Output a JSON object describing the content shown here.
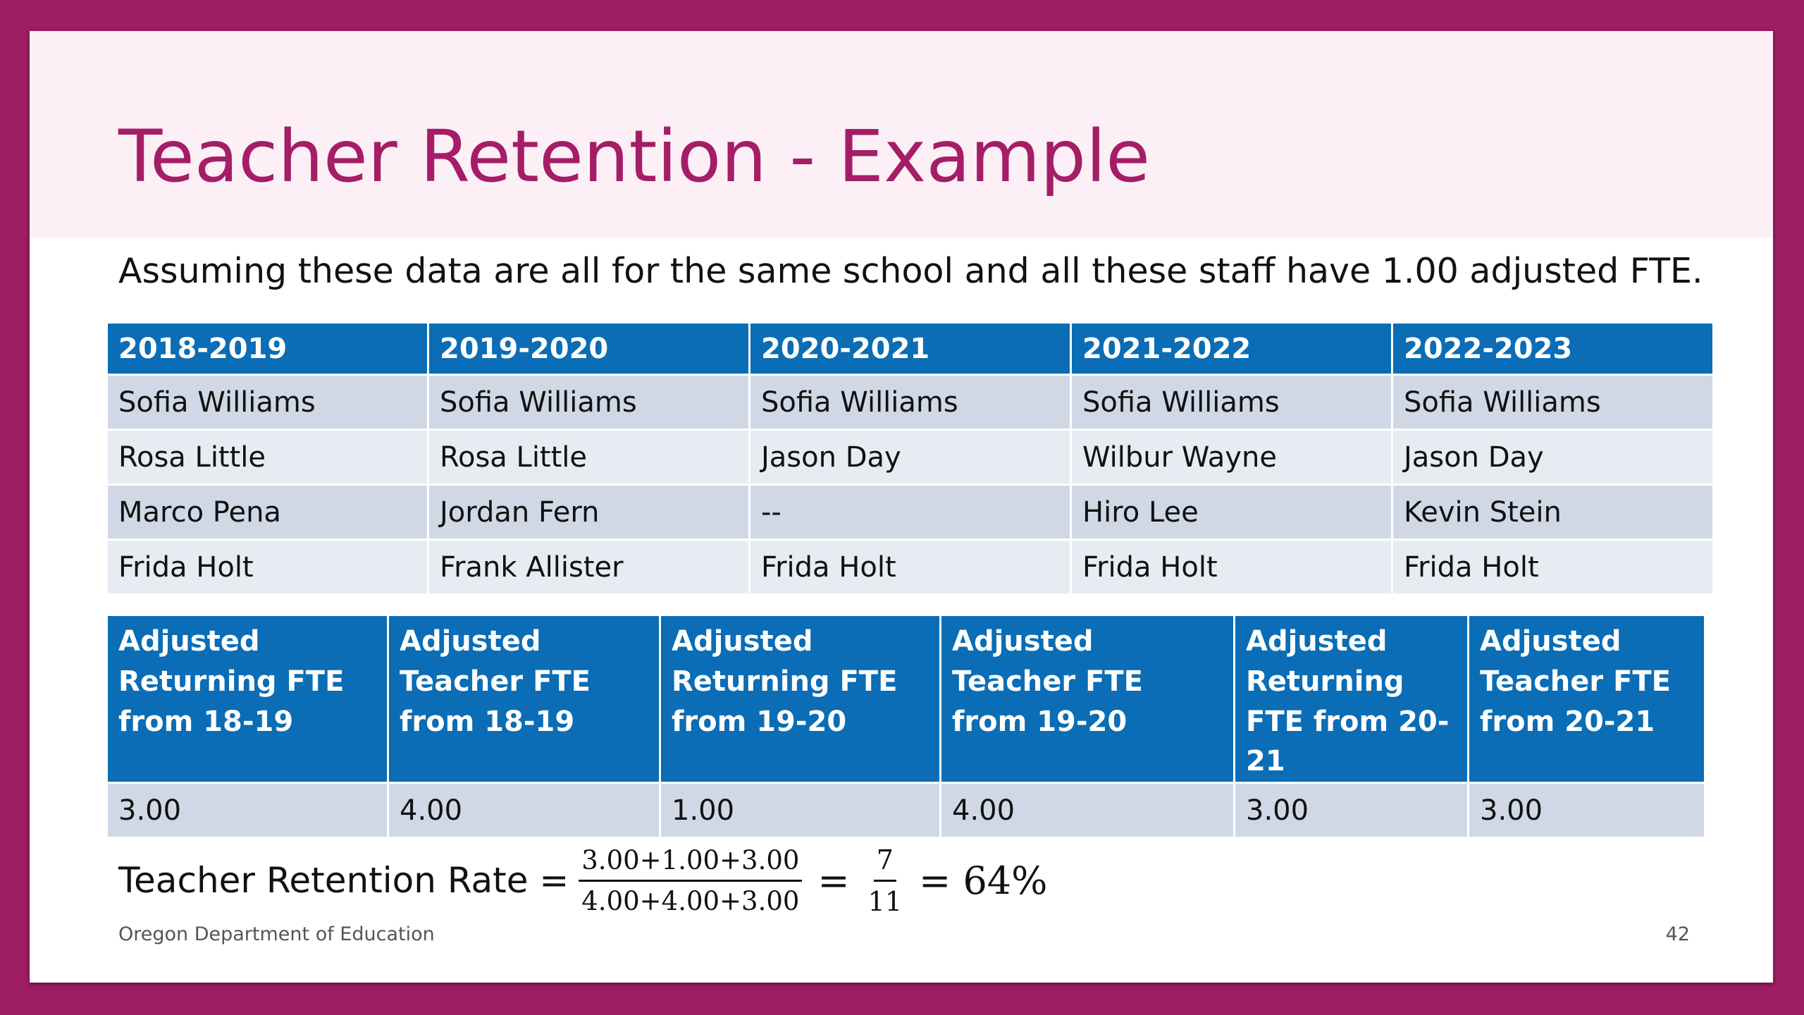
{
  "slide": {
    "title": "Teacher Retention - Example",
    "subtitle": "Assuming these data are all for the same school and all these staff have 1.00 adjusted FTE."
  },
  "staff_table": {
    "headers": [
      "2018-2019",
      "2019-2020",
      "2020-2021",
      "2021-2022",
      "2022-2023"
    ],
    "rows": [
      [
        "Sofia Williams",
        "Sofia Williams",
        "Sofia Williams",
        "Sofia Williams",
        "Sofia Williams"
      ],
      [
        "Rosa Little",
        "Rosa Little",
        "Jason Day",
        "Wilbur Wayne",
        "Jason Day"
      ],
      [
        "Marco Pena",
        "Jordan Fern",
        "--",
        "Hiro Lee",
        "Kevin Stein"
      ],
      [
        "Frida Holt",
        "Frank Allister",
        "Frida Holt",
        "Frida Holt",
        "Frida Holt"
      ]
    ]
  },
  "fte_table": {
    "headers": [
      "Adjusted Returning FTE from 18-19",
      "Adjusted Teacher FTE from 18-19",
      "Adjusted Returning FTE from 19-20",
      "Adjusted Teacher FTE from 19-20",
      "Adjusted Returning FTE from 20-21",
      "Adjusted Teacher FTE from 20-21"
    ],
    "values": [
      "3.00",
      "4.00",
      "1.00",
      "4.00",
      "3.00",
      "3.00"
    ]
  },
  "formula": {
    "label": "Teacher Retention Rate =",
    "numerator": "3.00+1.00+3.00",
    "denominator": "4.00+4.00+3.00",
    "equals": "=",
    "simple_numerator": "7",
    "simple_denominator": "11",
    "result": "= 64%"
  },
  "footer": {
    "organization": "Oregon Department of Education",
    "page_number": "42"
  },
  "colors": {
    "frame": "#9e1d63",
    "title": "#a51d66",
    "title_band": "#fcf0f6",
    "header_fill": "#0a6db5",
    "row_dark": "#d0d8e6",
    "row_light": "#e7ebf2"
  }
}
